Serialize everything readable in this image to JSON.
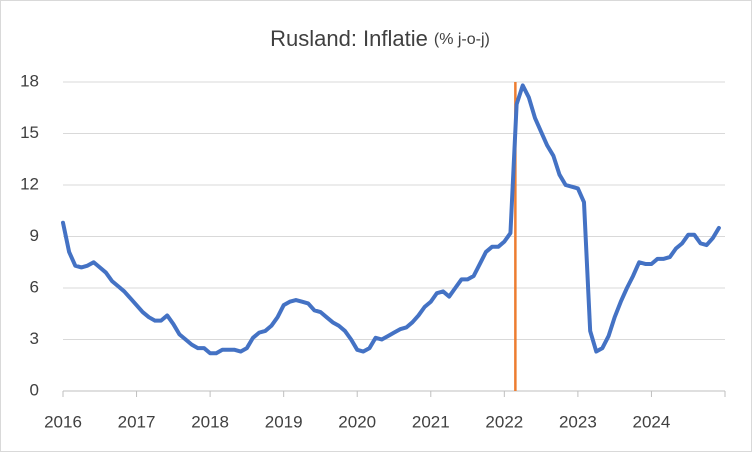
{
  "chart_data": {
    "type": "line",
    "title": "Rusland: Inflatie",
    "subtitle": "(% j-o-j)",
    "x": [
      2016,
      2016.083,
      2016.167,
      2016.25,
      2016.333,
      2016.417,
      2016.5,
      2016.583,
      2016.667,
      2016.75,
      2016.833,
      2016.917,
      2017,
      2017.083,
      2017.167,
      2017.25,
      2017.333,
      2017.417,
      2017.5,
      2017.583,
      2017.667,
      2017.75,
      2017.833,
      2017.917,
      2018,
      2018.083,
      2018.167,
      2018.25,
      2018.333,
      2018.417,
      2018.5,
      2018.583,
      2018.667,
      2018.75,
      2018.833,
      2018.917,
      2019,
      2019.083,
      2019.167,
      2019.25,
      2019.333,
      2019.417,
      2019.5,
      2019.583,
      2019.667,
      2019.75,
      2019.833,
      2019.917,
      2020,
      2020.083,
      2020.167,
      2020.25,
      2020.333,
      2020.417,
      2020.5,
      2020.583,
      2020.667,
      2020.75,
      2020.833,
      2020.917,
      2021,
      2021.083,
      2021.167,
      2021.25,
      2021.333,
      2021.417,
      2021.5,
      2021.583,
      2021.667,
      2021.75,
      2021.833,
      2021.917,
      2022,
      2022.083,
      2022.167,
      2022.25,
      2022.333,
      2022.417,
      2022.5,
      2022.583,
      2022.667,
      2022.75,
      2022.833,
      2022.917,
      2023,
      2023.083,
      2023.167,
      2023.25,
      2023.333,
      2023.417,
      2023.5,
      2023.583,
      2023.667,
      2023.75,
      2023.833,
      2023.917,
      2024,
      2024.083,
      2024.167,
      2024.25,
      2024.333,
      2024.417,
      2024.5,
      2024.583,
      2024.667,
      2024.75,
      2024.833,
      2024.917
    ],
    "values": [
      9.8,
      8.1,
      7.3,
      7.2,
      7.3,
      7.5,
      7.2,
      6.9,
      6.4,
      6.1,
      5.8,
      5.4,
      5.0,
      4.6,
      4.3,
      4.1,
      4.1,
      4.4,
      3.9,
      3.3,
      3.0,
      2.7,
      2.5,
      2.5,
      2.2,
      2.2,
      2.4,
      2.4,
      2.4,
      2.3,
      2.5,
      3.1,
      3.4,
      3.5,
      3.8,
      4.3,
      5.0,
      5.2,
      5.3,
      5.2,
      5.1,
      4.7,
      4.6,
      4.3,
      4.0,
      3.8,
      3.5,
      3.0,
      2.4,
      2.3,
      2.5,
      3.1,
      3.0,
      3.2,
      3.4,
      3.6,
      3.7,
      4.0,
      4.4,
      4.9,
      5.2,
      5.7,
      5.8,
      5.5,
      6.0,
      6.5,
      6.5,
      6.7,
      7.4,
      8.1,
      8.4,
      8.4,
      8.7,
      9.2,
      16.7,
      17.8,
      17.1,
      15.9,
      15.1,
      14.3,
      13.7,
      12.6,
      12.0,
      11.9,
      11.8,
      11.0,
      3.5,
      2.3,
      2.5,
      3.2,
      4.3,
      5.2,
      6.0,
      6.7,
      7.5,
      7.4,
      7.4,
      7.7,
      7.7,
      7.8,
      8.3,
      8.6,
      9.1,
      9.1,
      8.6,
      8.5,
      8.9,
      9.5
    ],
    "color": "#4472c4",
    "vline": {
      "x": 2022.15,
      "color": "#ed7d31"
    },
    "xlim": [
      2016,
      2025
    ],
    "xticks": [
      2016,
      2017,
      2018,
      2019,
      2020,
      2021,
      2022,
      2023,
      2024
    ],
    "ylim": [
      0,
      18
    ],
    "yticks": [
      0,
      3,
      6,
      9,
      12,
      15,
      18
    ],
    "grid": true
  }
}
